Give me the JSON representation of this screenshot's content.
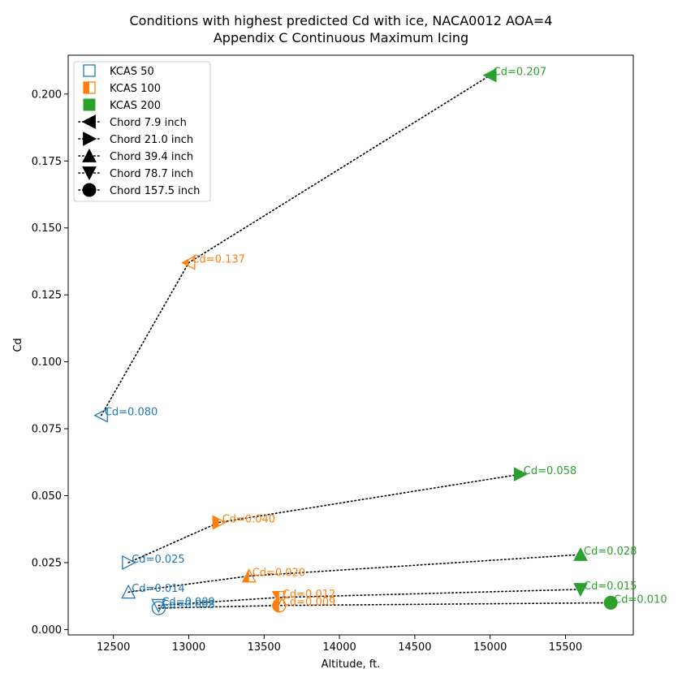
{
  "chart_data": {
    "type": "scatter",
    "title": "Conditions with highest predicted Cd with ice, NACA0012 AOA=4",
    "subtitle": "Appendix C Continuous Maximum Icing",
    "xlabel": "Altitude, ft.",
    "ylabel": "Cd",
    "xlim": [
      12200,
      15950
    ],
    "ylim": [
      -0.002,
      0.2145
    ],
    "xticks": [
      "12500",
      "13000",
      "13500",
      "14000",
      "14500",
      "15000",
      "15500"
    ],
    "yticks": [
      "0.000",
      "0.025",
      "0.050",
      "0.075",
      "0.100",
      "0.125",
      "0.150",
      "0.175",
      "0.200"
    ],
    "grid": false,
    "legend_position": "top-left",
    "speed_legend": [
      {
        "label": "KCAS 50",
        "color": "#1f77b4",
        "fill": "none"
      },
      {
        "label": "KCAS 100",
        "color": "#ff7f0e",
        "fill": "half"
      },
      {
        "label": "KCAS 200",
        "color": "#2ca02c",
        "fill": "full"
      }
    ],
    "chord_legend": [
      {
        "label": "Chord 7.9 inch",
        "marker": "triangle-left"
      },
      {
        "label": "Chord 21.0 inch",
        "marker": "triangle-right"
      },
      {
        "label": "Chord 39.4 inch",
        "marker": "triangle-up"
      },
      {
        "label": "Chord 78.7 inch",
        "marker": "triangle-down"
      },
      {
        "label": "Chord 157.5 inch",
        "marker": "circle"
      }
    ],
    "series": [
      {
        "marker": "triangle-left",
        "points": [
          {
            "x": 12420,
            "y": 0.08,
            "speed": 0,
            "label": "Cd=0.080"
          },
          {
            "x": 13000,
            "y": 0.137,
            "speed": 1,
            "label": "Cd=0.137"
          },
          {
            "x": 15000,
            "y": 0.207,
            "speed": 2,
            "label": "Cd=0.207"
          }
        ]
      },
      {
        "marker": "triangle-right",
        "points": [
          {
            "x": 12600,
            "y": 0.025,
            "speed": 0,
            "label": "Cd=0.025"
          },
          {
            "x": 13200,
            "y": 0.04,
            "speed": 1,
            "label": "Cd=0.040"
          },
          {
            "x": 15200,
            "y": 0.058,
            "speed": 2,
            "label": "Cd=0.058"
          }
        ]
      },
      {
        "marker": "triangle-up",
        "points": [
          {
            "x": 12600,
            "y": 0.014,
            "speed": 0,
            "label": "Cd=0.014"
          },
          {
            "x": 13400,
            "y": 0.02,
            "speed": 1,
            "label": "Cd=0.020"
          },
          {
            "x": 15600,
            "y": 0.028,
            "speed": 2,
            "label": "Cd=0.028"
          }
        ]
      },
      {
        "marker": "triangle-down",
        "points": [
          {
            "x": 12800,
            "y": 0.009,
            "speed": 0,
            "label": "Cd=0.009"
          },
          {
            "x": 13600,
            "y": 0.012,
            "speed": 1,
            "label": "Cd=0.012"
          },
          {
            "x": 15600,
            "y": 0.015,
            "speed": 2,
            "label": "Cd=0.015"
          }
        ]
      },
      {
        "marker": "circle",
        "points": [
          {
            "x": 12800,
            "y": 0.008,
            "speed": 0,
            "label": "Cd=0.008"
          },
          {
            "x": 13600,
            "y": 0.009,
            "speed": 1,
            "label": "Cd=0.009"
          },
          {
            "x": 15800,
            "y": 0.01,
            "speed": 2,
            "label": "Cd=0.010"
          }
        ]
      }
    ]
  }
}
